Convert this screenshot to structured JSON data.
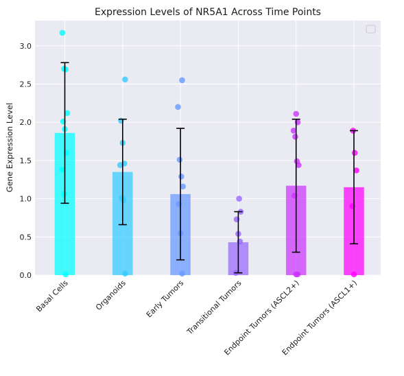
{
  "chart_data": {
    "type": "bar",
    "title": "Expression Levels of NR5A1 Across Time Points",
    "xlabel": "",
    "ylabel": "Gene Expression Level",
    "ylim": [
      0,
      3.33
    ],
    "yticks": [
      "0.0",
      "0.5",
      "1.0",
      "1.5",
      "2.0",
      "2.5",
      "3.0"
    ],
    "grid": true,
    "legend": "top-right (empty)",
    "categories": [
      "Basal Cells",
      "Organoids",
      "Early Tumors",
      "Transitional Tumors",
      "Endpoint Tumors (ASCL2+)",
      "Endpoint Tumors (ASCL1+)"
    ],
    "colors": [
      "#00ffff",
      "#33ccff",
      "#6699ff",
      "#9966ff",
      "#cc33ff",
      "#ff00ff"
    ],
    "values": [
      1.86,
      1.35,
      1.06,
      0.43,
      1.17,
      1.15
    ],
    "error": [
      0.92,
      0.69,
      0.86,
      0.4,
      0.87,
      0.74
    ],
    "points": [
      [
        3.17,
        2.7,
        2.69,
        2.12,
        2.01,
        1.91,
        1.6,
        1.38,
        1.06,
        0.01
      ],
      [
        2.56,
        2.02,
        1.73,
        1.46,
        1.44,
        1.01,
        0.98,
        0.02
      ],
      [
        2.55,
        2.2,
        1.51,
        1.29,
        1.16,
        0.93,
        0.55,
        0.02
      ],
      [
        1.0,
        0.83,
        0.73,
        0.54,
        0.44,
        0.03
      ],
      [
        2.11,
        2.0,
        1.89,
        1.81,
        1.49,
        1.44,
        1.04,
        0.01,
        0.01
      ],
      [
        1.89,
        1.6,
        1.37,
        0.9,
        0.01
      ]
    ]
  }
}
